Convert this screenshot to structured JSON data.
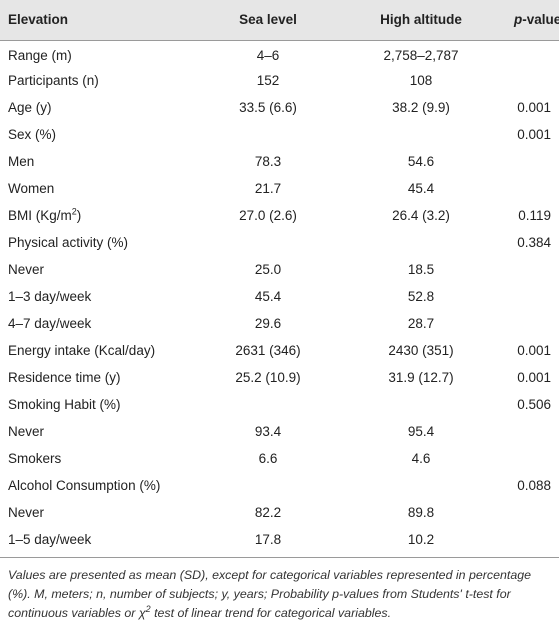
{
  "table": {
    "header": [
      "Elevation",
      "Sea level",
      "High altitude",
      {
        "italic": "p",
        "text": "-value"
      }
    ],
    "rows": [
      [
        "Range (m)",
        "4–6",
        "2,758–2,787",
        null
      ],
      [
        "Participants (n)",
        "152",
        "108",
        null
      ],
      [
        "Age (y)",
        "33.5 (6.6)",
        "38.2 (9.9)",
        "0.001"
      ],
      [
        "Sex (%)",
        null,
        null,
        "0.001"
      ],
      [
        "Men",
        "78.3",
        "54.6",
        null
      ],
      [
        "Women",
        "21.7",
        "45.4",
        null
      ],
      [
        [
          "BMI (Kg/m",
          "2",
          ")"
        ],
        "27.0 (2.6)",
        "26.4 (3.2)",
        "0.119"
      ],
      [
        "Physical activity (%)",
        null,
        null,
        "0.384"
      ],
      [
        "Never",
        "25.0",
        "18.5",
        null
      ],
      [
        "1–3 day/week",
        "45.4",
        "52.8",
        null
      ],
      [
        "4–7 day/week",
        "29.6",
        "28.7",
        null
      ],
      [
        "Energy intake (Kcal/day)",
        "2631 (346)",
        "2430 (351)",
        "0.001"
      ],
      [
        "Residence time (y)",
        "25.2 (10.9)",
        "31.9 (12.7)",
        "0.001"
      ],
      [
        "Smoking Habit (%)",
        null,
        null,
        "0.506"
      ],
      [
        "Never",
        "93.4",
        "95.4",
        null
      ],
      [
        "Smokers",
        "6.6",
        "4.6",
        null
      ],
      [
        "Alcohol Consumption (%)",
        null,
        null,
        "0.088"
      ],
      [
        "Never",
        "82.2",
        "89.8",
        null
      ],
      [
        "1–5 day/week",
        "17.8",
        "10.2",
        null
      ]
    ]
  },
  "footnote": [
    "Values are presented as mean (SD), except for categorical variables represented in percentage (%). M, meters; n, number of subjects; y, years; Probability p-values from Students' t-test for continuous variables or χ",
    "2",
    " test of linear trend for categorical variables."
  ]
}
